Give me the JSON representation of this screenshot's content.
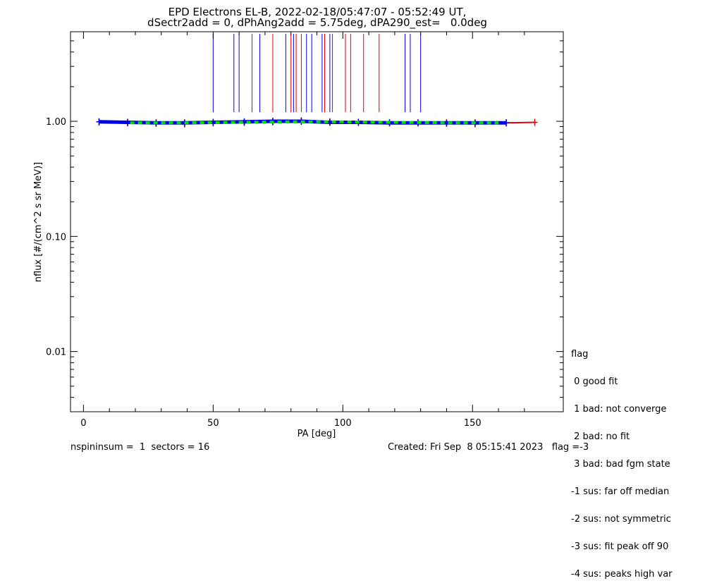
{
  "header": {
    "title_line1": "EPD Electrons EL-B, 2022-02-18/05:47:07 - 05:52:49 UT,",
    "title_line2": "dSectr2add = 0, dPhAng2add = 5.75deg, dPA290_est=   0.0deg"
  },
  "legend": {
    "heading": "flag",
    "items": [
      " 0 good fit",
      " 1 bad: not converge",
      " 2 bad: no fit",
      " 3 bad: bad fgm state",
      "-1 sus: far off median",
      "-2 sus: not symmetric",
      "-3 sus: fit peak off 90",
      "-4 sus: peaks high var"
    ]
  },
  "footer": {
    "left": "nspininsum =  1  sectors = 16",
    "right": "Created: Fri Sep  8 05:15:41 2023   flag =-3"
  },
  "colors": {
    "series_red": "#e00000",
    "series_blue": "#0000e6",
    "fit": "#00e000",
    "axis": "#000000"
  },
  "chart_data": {
    "type": "line",
    "title": "EPD Electrons EL-B, 2022-02-18/05:47:07 - 05:52:49 UT,",
    "xlabel": "PA [deg]",
    "ylabel": "nflux [#/(cm^2 s sr MeV)]",
    "xlim": [
      -5,
      185
    ],
    "ylim": [
      0.003,
      6
    ],
    "yscale": "log",
    "x_ticks": [
      0,
      50,
      100,
      150
    ],
    "x_tick_labels": [
      "0",
      "50",
      "100",
      "150"
    ],
    "y_ticks": [
      0.01,
      0.1,
      1.0
    ],
    "y_tick_labels": [
      "0.01",
      "0.10",
      "1.00"
    ],
    "grid": false,
    "legend_position": "right",
    "series": [
      {
        "color": "red",
        "x": [
          6,
          17,
          28,
          39,
          50,
          62,
          73,
          84,
          95,
          106,
          118,
          129,
          140,
          151,
          163,
          174
        ],
        "y": [
          0.99,
          0.97,
          0.96,
          0.95,
          0.97,
          0.98,
          0.99,
          1.01,
          0.99,
          0.98,
          0.97,
          0.97,
          0.96,
          0.95,
          0.97,
          0.98
        ]
      },
      {
        "color": "blue",
        "x": [
          6,
          17,
          28,
          39,
          50,
          62,
          73,
          84,
          95,
          106,
          118,
          129,
          140,
          151,
          163
        ],
        "y": [
          0.99,
          0.98,
          0.97,
          0.97,
          0.98,
          0.99,
          1.0,
          1.0,
          0.98,
          0.98,
          0.97,
          0.97,
          0.97,
          0.97,
          0.97
        ]
      },
      {
        "color": "green-dashed fit",
        "x": [
          18,
          40,
          60,
          80,
          100,
          120,
          140,
          160
        ],
        "y": [
          0.97,
          0.97,
          0.98,
          0.99,
          0.99,
          0.98,
          0.97,
          0.97
        ]
      }
    ],
    "vertical_markers": {
      "red_x": [
        65,
        73,
        80,
        82,
        84,
        93,
        96,
        101,
        103,
        108,
        114
      ],
      "blue_x": [
        50,
        58,
        60,
        68,
        78,
        81,
        86,
        88,
        92,
        95,
        124,
        126,
        130
      ]
    }
  }
}
